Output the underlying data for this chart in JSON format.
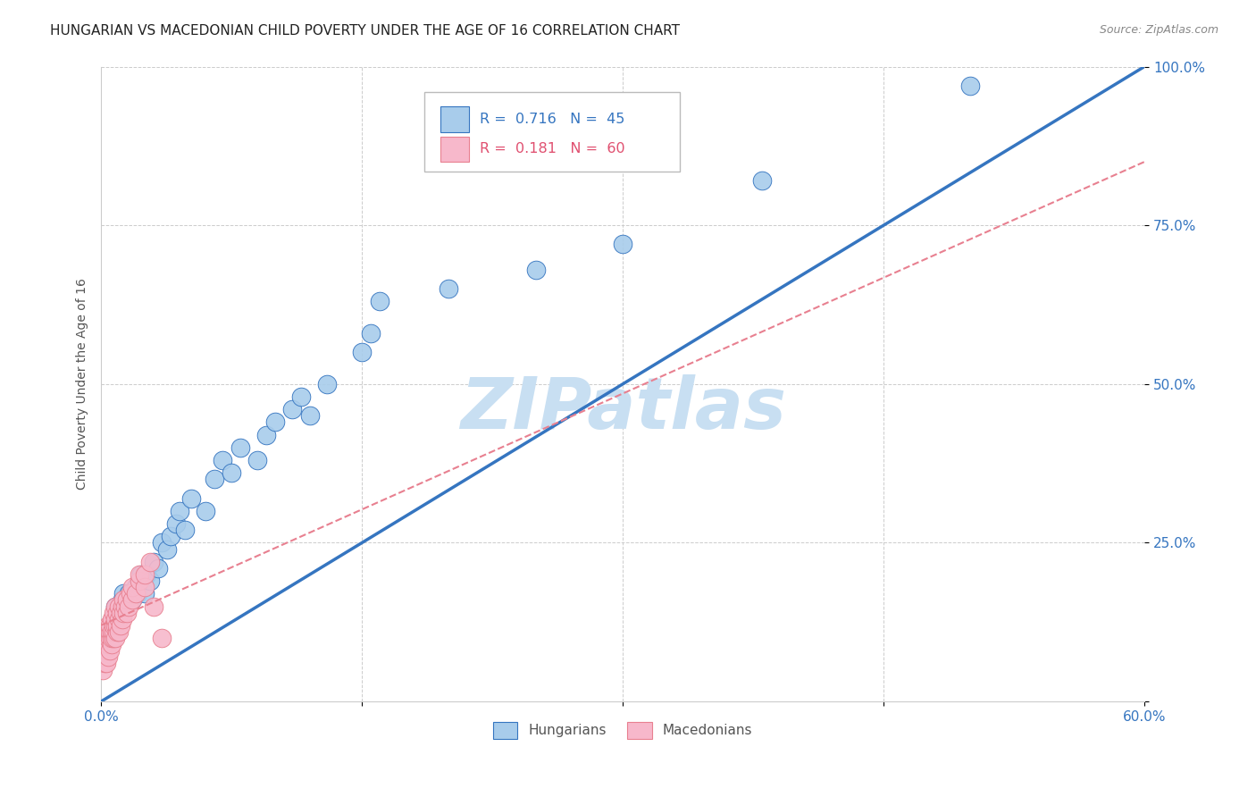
{
  "title": "HUNGARIAN VS MACEDONIAN CHILD POVERTY UNDER THE AGE OF 16 CORRELATION CHART",
  "source": "Source: ZipAtlas.com",
  "ylabel": "Child Poverty Under the Age of 16",
  "xlim": [
    0.0,
    0.6
  ],
  "ylim": [
    0.0,
    1.0
  ],
  "xtick_positions": [
    0.0,
    0.15,
    0.3,
    0.45,
    0.6
  ],
  "xticklabels": [
    "0.0%",
    "",
    "",
    "",
    "60.0%"
  ],
  "ytick_positions": [
    0.0,
    0.25,
    0.5,
    0.75,
    1.0
  ],
  "yticklabels": [
    "",
    "25.0%",
    "50.0%",
    "75.0%",
    "100.0%"
  ],
  "hungarian_R": 0.716,
  "hungarian_N": 45,
  "macedonian_R": 0.181,
  "macedonian_N": 60,
  "hungarian_color": "#A8CCEB",
  "macedonian_color": "#F7B8CB",
  "hungarian_line_color": "#3575C0",
  "macedonian_line_color": "#E88090",
  "watermark": "ZIPatlas",
  "watermark_color": "#C8DFF2",
  "legend_R_color": "#3575C0",
  "legend_R2_color": "#E05070",
  "hungarian_x": [
    0.005,
    0.007,
    0.008,
    0.01,
    0.012,
    0.013,
    0.015,
    0.016,
    0.018,
    0.02,
    0.021,
    0.022,
    0.023,
    0.025,
    0.026,
    0.028,
    0.03,
    0.033,
    0.035,
    0.038,
    0.04,
    0.043,
    0.045,
    0.048,
    0.052,
    0.06,
    0.065,
    0.07,
    0.075,
    0.08,
    0.09,
    0.095,
    0.1,
    0.11,
    0.115,
    0.12,
    0.13,
    0.15,
    0.155,
    0.16,
    0.2,
    0.25,
    0.3,
    0.38,
    0.5
  ],
  "hungarian_y": [
    0.1,
    0.12,
    0.15,
    0.14,
    0.16,
    0.17,
    0.15,
    0.17,
    0.16,
    0.18,
    0.17,
    0.19,
    0.2,
    0.17,
    0.2,
    0.19,
    0.22,
    0.21,
    0.25,
    0.24,
    0.26,
    0.28,
    0.3,
    0.27,
    0.32,
    0.3,
    0.35,
    0.38,
    0.36,
    0.4,
    0.38,
    0.42,
    0.44,
    0.46,
    0.48,
    0.45,
    0.5,
    0.55,
    0.58,
    0.63,
    0.65,
    0.68,
    0.72,
    0.82,
    0.97
  ],
  "macedonian_x": [
    0.001,
    0.001,
    0.001,
    0.002,
    0.002,
    0.002,
    0.002,
    0.003,
    0.003,
    0.003,
    0.003,
    0.003,
    0.004,
    0.004,
    0.004,
    0.004,
    0.004,
    0.005,
    0.005,
    0.005,
    0.005,
    0.006,
    0.006,
    0.006,
    0.006,
    0.007,
    0.007,
    0.007,
    0.007,
    0.008,
    0.008,
    0.008,
    0.008,
    0.009,
    0.009,
    0.009,
    0.01,
    0.01,
    0.01,
    0.011,
    0.011,
    0.012,
    0.012,
    0.013,
    0.013,
    0.014,
    0.015,
    0.015,
    0.016,
    0.017,
    0.018,
    0.018,
    0.02,
    0.022,
    0.022,
    0.025,
    0.025,
    0.028,
    0.03,
    0.035
  ],
  "macedonian_y": [
    0.05,
    0.07,
    0.08,
    0.06,
    0.08,
    0.09,
    0.1,
    0.06,
    0.08,
    0.09,
    0.1,
    0.11,
    0.07,
    0.09,
    0.1,
    0.11,
    0.12,
    0.08,
    0.1,
    0.11,
    0.12,
    0.09,
    0.1,
    0.11,
    0.13,
    0.1,
    0.11,
    0.12,
    0.14,
    0.1,
    0.12,
    0.13,
    0.15,
    0.11,
    0.12,
    0.14,
    0.11,
    0.13,
    0.15,
    0.12,
    0.14,
    0.13,
    0.15,
    0.14,
    0.16,
    0.15,
    0.14,
    0.16,
    0.15,
    0.17,
    0.16,
    0.18,
    0.17,
    0.19,
    0.2,
    0.18,
    0.2,
    0.22,
    0.15,
    0.1
  ],
  "hung_line_x0": 0.0,
  "hung_line_y0": 0.0,
  "hung_line_x1": 0.6,
  "hung_line_y1": 1.0,
  "mac_line_x0": 0.0,
  "mac_line_y0": 0.12,
  "mac_line_x1": 0.6,
  "mac_line_y1": 0.85
}
